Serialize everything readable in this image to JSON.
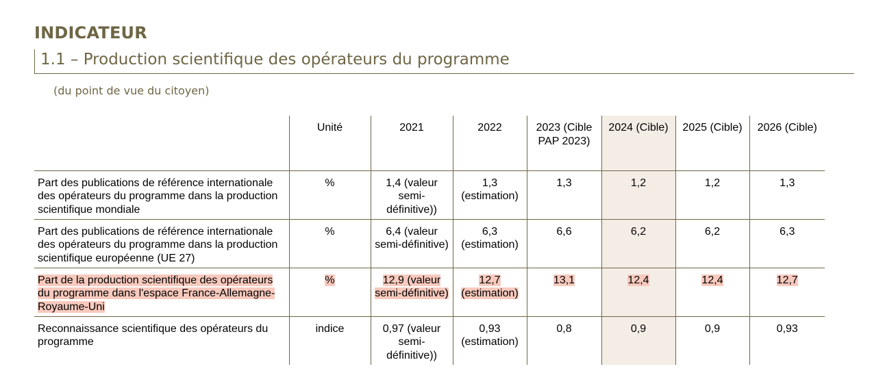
{
  "section_label": "INDICATEUR",
  "indicator_title": "1.1 – Production scientifique des opérateurs du programme",
  "viewpoint": "(du point de vue du citoyen)",
  "table": {
    "headers": [
      "",
      "Unité",
      "2021",
      "2022",
      "2023 (Cible PAP 2023)",
      "2024 (Cible)",
      "2025 (Cible)",
      "2026 (Cible)"
    ],
    "rows": [
      {
        "label": "Part des publications de référence internationale des opérateurs du programme dans la production scientifique mondiale",
        "cells": [
          "%",
          "1,4 (valeur semi-définitive))",
          "1,3 (estimation)",
          "1,3",
          "1,2",
          "1,2",
          "1,3"
        ]
      },
      {
        "label": "Part des publications de référence internationale des opérateurs du programme dans la production scientifique européenne (UE 27)",
        "cells": [
          "%",
          "6,4 (valeur semi-définitive)",
          "6,3 (estimation)",
          "6,6",
          "6,2",
          "6,2",
          "6,3"
        ]
      },
      {
        "label": "Part de la production scientifique des opérateurs du programme dans l'espace France-Allemagne-Royaume-Uni",
        "cells": [
          "%",
          "12,9 (valeur semi-définitive)",
          "12,7 (estimation)",
          "13,1",
          "12,4",
          "12,4",
          "12,7"
        ],
        "highlighted": true
      },
      {
        "label": "Reconnaissance scientifique des opérateurs du programme",
        "cells": [
          "indice",
          "0,97 (valeur semi-définitive))",
          "0,93 (estimation)",
          "0,8",
          "0,9",
          "0,9",
          "0,93"
        ]
      }
    ]
  },
  "colors": {
    "heading": "#6e6645",
    "rule": "#6e6645",
    "shaded_column": "#f4ede6",
    "highlight": "#f8c9bd"
  }
}
